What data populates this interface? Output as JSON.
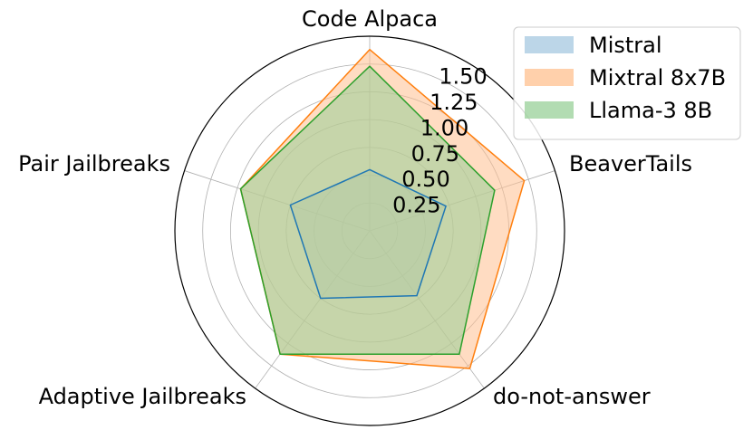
{
  "chart_data": {
    "type": "radar",
    "axes": [
      "Code Alpaca",
      "BeaverTails",
      "do-not-answer",
      "Adaptive Jailbreaks",
      "Pair Jailbreaks"
    ],
    "series": [
      {
        "name": "Mistral",
        "values": [
          0.55,
          0.72,
          0.72,
          0.75,
          0.75
        ],
        "color": "#1f77b4",
        "fill": "#a6c8e0"
      },
      {
        "name": "Mixtral 8x7B",
        "values": [
          1.63,
          1.46,
          1.53,
          1.37,
          1.22
        ],
        "color": "#ff7f0e",
        "fill": "#ffc08f"
      },
      {
        "name": "Llama-3 8B",
        "values": [
          1.48,
          1.18,
          1.37,
          1.37,
          1.22
        ],
        "color": "#2ca02c",
        "fill": "#98d098"
      }
    ],
    "rmax": 1.75,
    "rticks": [
      0.25,
      0.5,
      0.75,
      1.0,
      1.25,
      1.5
    ],
    "rtick_labels": [
      "0.25",
      "0.50",
      "0.75",
      "1.00",
      "1.25",
      "1.50"
    ],
    "grid": true,
    "legend_position": "top-right"
  }
}
